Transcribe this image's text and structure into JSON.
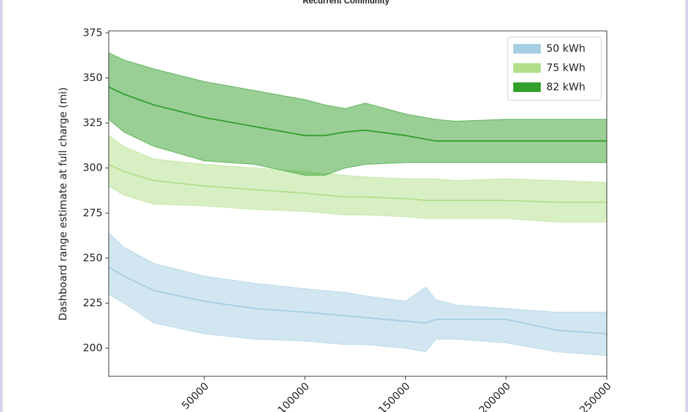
{
  "chart_data": {
    "type": "band-line",
    "title": "Recurrent Community",
    "ylabel": "Dashboard range estimate at full charge (mi)",
    "xlim": [
      2500,
      250000
    ],
    "ylim": [
      184.4,
      376.1
    ],
    "xticks": [
      50000,
      100000,
      150000,
      200000,
      250000
    ],
    "yticks": [
      200,
      225,
      250,
      275,
      300,
      325,
      350,
      375
    ],
    "legend": "upper right",
    "x": [
      2500,
      10000,
      25000,
      50000,
      75000,
      100000,
      110000,
      120000,
      130000,
      150000,
      160000,
      165000,
      175000,
      200000,
      225000,
      250000
    ],
    "series": [
      {
        "name": "50 kWh",
        "color": "#a6cee3",
        "values": [
          245,
          240,
          232,
          226,
          222,
          220,
          219,
          218,
          217,
          215,
          214,
          216,
          216,
          216,
          210,
          208
        ],
        "upper": [
          264,
          256,
          247,
          240,
          236,
          233,
          232,
          231,
          229,
          226,
          234,
          227,
          224,
          222,
          220,
          220
        ],
        "lower": [
          230,
          225,
          214,
          208,
          205,
          204,
          203,
          202,
          202,
          200,
          198,
          205,
          205,
          203,
          198,
          196
        ]
      },
      {
        "name": "75 kWh",
        "color": "#b2df8a",
        "values": [
          302,
          298,
          293,
          290,
          288,
          286,
          285,
          284,
          284,
          283,
          282,
          282,
          282,
          282,
          281,
          281
        ],
        "upper": [
          318,
          312,
          305,
          302,
          300,
          298,
          297,
          296,
          295,
          294,
          294,
          294,
          293,
          294,
          293,
          292
        ],
        "lower": [
          290,
          285,
          280,
          279,
          277,
          276,
          275,
          274,
          274,
          273,
          272,
          272,
          272,
          272,
          270,
          270
        ]
      },
      {
        "name": "82 kWh",
        "color": "#33a02c",
        "values": [
          345,
          341,
          335,
          328,
          323,
          318,
          318,
          320,
          321,
          318,
          316,
          315,
          315,
          315,
          315,
          315
        ],
        "upper": [
          364,
          360,
          355,
          348,
          343,
          338,
          335,
          333,
          336,
          330,
          328,
          327,
          326,
          327,
          327,
          327
        ],
        "lower": [
          327,
          320,
          312,
          304,
          302,
          296,
          296,
          300,
          302,
          303,
          303,
          303,
          303,
          303,
          303,
          303
        ]
      }
    ]
  }
}
